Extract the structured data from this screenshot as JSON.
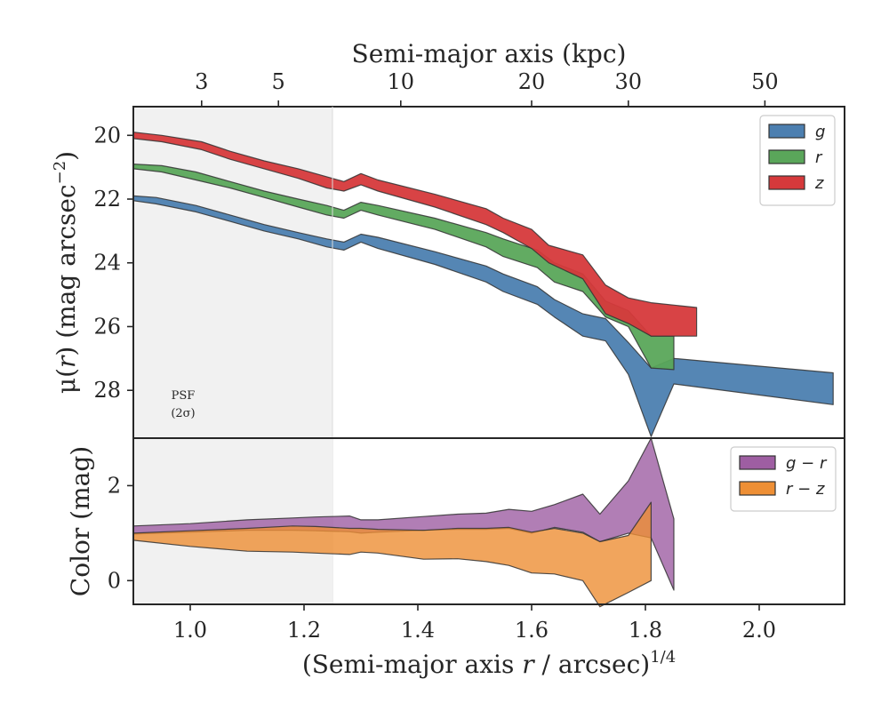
{
  "chart_data": [
    {
      "type": "area",
      "panel": "surface-brightness",
      "ylabel": "μ(r) (mag arcsec⁻²)",
      "ylabel_parts": [
        "μ(",
        "r",
        ") (mag arcsec",
        "−2",
        ")"
      ],
      "ylim": [
        29.5,
        19.1
      ],
      "y_inverted": true,
      "xlim": [
        0.9,
        2.15
      ],
      "yticks": [
        20,
        22,
        24,
        26,
        28
      ],
      "top_axis": {
        "label": "Semi-major axis (kpc)",
        "ticks": [
          {
            "label": "3",
            "x": 1.02
          },
          {
            "label": "5",
            "x": 1.155
          },
          {
            "label": "10",
            "x": 1.37
          },
          {
            "label": "20",
            "x": 1.6
          },
          {
            "label": "30",
            "x": 1.77
          },
          {
            "label": "50",
            "x": 2.01
          }
        ]
      },
      "psf_label": [
        "PSF",
        "(2σ)"
      ],
      "shaded_region": {
        "x_from": 0.9,
        "x_to": 1.25
      },
      "legend": {
        "position": "top-right"
      },
      "series": [
        {
          "name": "g",
          "color": "#4c7fb0",
          "x": [
            0.9,
            0.94,
            1.01,
            1.07,
            1.13,
            1.19,
            1.24,
            1.27,
            1.3,
            1.33,
            1.43,
            1.52,
            1.55,
            1.61,
            1.64,
            1.69,
            1.73,
            1.77,
            1.81,
            1.85,
            2.13
          ],
          "upper": [
            22.05,
            22.15,
            22.4,
            22.7,
            23.0,
            23.25,
            23.5,
            23.6,
            23.35,
            23.55,
            24.05,
            24.6,
            24.9,
            25.3,
            25.7,
            26.3,
            26.45,
            27.5,
            29.45,
            27.8,
            28.45
          ],
          "lower": [
            21.9,
            21.95,
            22.2,
            22.5,
            22.8,
            23.05,
            23.25,
            23.35,
            23.1,
            23.2,
            23.65,
            24.1,
            24.35,
            24.75,
            25.15,
            25.6,
            25.75,
            26.5,
            27.3,
            27.0,
            27.45
          ]
        },
        {
          "name": "r",
          "color": "#5aa65a",
          "x": [
            0.9,
            0.95,
            1.01,
            1.07,
            1.13,
            1.19,
            1.24,
            1.27,
            1.3,
            1.33,
            1.43,
            1.52,
            1.55,
            1.61,
            1.64,
            1.69,
            1.73,
            1.77,
            1.81,
            1.85
          ],
          "upper": [
            21.05,
            21.15,
            21.4,
            21.65,
            21.95,
            22.25,
            22.5,
            22.6,
            22.35,
            22.5,
            22.95,
            23.5,
            23.8,
            24.15,
            24.6,
            24.9,
            25.7,
            26.0,
            27.3,
            27.35
          ],
          "lower": [
            20.9,
            20.95,
            21.15,
            21.45,
            21.75,
            22.0,
            22.2,
            22.35,
            22.1,
            22.2,
            22.6,
            23.05,
            23.25,
            23.6,
            24.0,
            24.35,
            25.2,
            25.5,
            26.3,
            26.3
          ]
        },
        {
          "name": "z",
          "color": "#d6393b",
          "x": [
            0.9,
            0.95,
            1.02,
            1.07,
            1.13,
            1.19,
            1.24,
            1.27,
            1.3,
            1.33,
            1.43,
            1.52,
            1.55,
            1.6,
            1.63,
            1.69,
            1.73,
            1.77,
            1.81,
            1.89
          ],
          "upper": [
            20.1,
            20.2,
            20.45,
            20.75,
            21.05,
            21.35,
            21.65,
            21.75,
            21.55,
            21.75,
            22.25,
            22.8,
            23.05,
            23.55,
            24.0,
            24.5,
            25.6,
            25.9,
            26.3,
            26.3
          ],
          "lower": [
            19.9,
            20.0,
            20.2,
            20.5,
            20.8,
            21.05,
            21.3,
            21.45,
            21.2,
            21.4,
            21.85,
            22.3,
            22.6,
            22.95,
            23.45,
            23.75,
            24.7,
            25.1,
            25.25,
            25.4
          ]
        }
      ]
    },
    {
      "type": "area",
      "panel": "color",
      "ylabel": "Color (mag)",
      "xlabel": "(Semi-major axis r / arcsec)1/4",
      "xlabel_parts": [
        "(Semi-major axis ",
        "r",
        " / arcsec)",
        "1/4"
      ],
      "xlim": [
        0.9,
        2.15
      ],
      "xticks": [
        1.0,
        1.2,
        1.4,
        1.6,
        1.8,
        2.0
      ],
      "xtick_labels": [
        "1.0",
        "1.2",
        "1.4",
        "1.6",
        "1.8",
        "2.0"
      ],
      "ylim": [
        -0.5,
        3.0
      ],
      "yticks": [
        0,
        2
      ],
      "legend": {
        "position": "top-right"
      },
      "series": [
        {
          "name": "g − r",
          "label_parts": [
            "g",
            " − ",
            "r"
          ],
          "color": "#9e5ea2",
          "x": [
            0.9,
            1.0,
            1.1,
            1.18,
            1.22,
            1.28,
            1.3,
            1.33,
            1.41,
            1.47,
            1.52,
            1.56,
            1.6,
            1.64,
            1.69,
            1.72,
            1.77,
            1.81,
            1.85
          ],
          "upper": [
            1.15,
            1.2,
            1.28,
            1.32,
            1.34,
            1.36,
            1.28,
            1.28,
            1.35,
            1.4,
            1.42,
            1.5,
            1.46,
            1.6,
            1.82,
            1.4,
            2.1,
            3.0,
            1.3
          ],
          "lower": [
            0.98,
            1.02,
            1.06,
            1.06,
            1.05,
            1.03,
            1.0,
            1.02,
            1.06,
            1.08,
            1.08,
            1.1,
            1.0,
            1.12,
            1.02,
            0.82,
            1.0,
            0.9,
            -0.2
          ]
        },
        {
          "name": "r − z",
          "label_parts": [
            "r",
            " − ",
            "z"
          ],
          "color": "#ee8f35",
          "x": [
            0.9,
            1.0,
            1.1,
            1.18,
            1.22,
            1.28,
            1.3,
            1.33,
            1.41,
            1.47,
            1.52,
            1.56,
            1.6,
            1.64,
            1.69,
            1.72,
            1.77,
            1.81
          ],
          "upper": [
            1.0,
            1.05,
            1.1,
            1.15,
            1.14,
            1.1,
            1.1,
            1.08,
            1.06,
            1.1,
            1.1,
            1.12,
            1.02,
            1.1,
            1.0,
            0.82,
            0.95,
            1.65
          ],
          "lower": [
            0.85,
            0.72,
            0.62,
            0.6,
            0.58,
            0.55,
            0.6,
            0.58,
            0.45,
            0.46,
            0.4,
            0.32,
            0.16,
            0.14,
            0.0,
            -0.55,
            -0.25,
            0.0
          ]
        }
      ]
    }
  ]
}
